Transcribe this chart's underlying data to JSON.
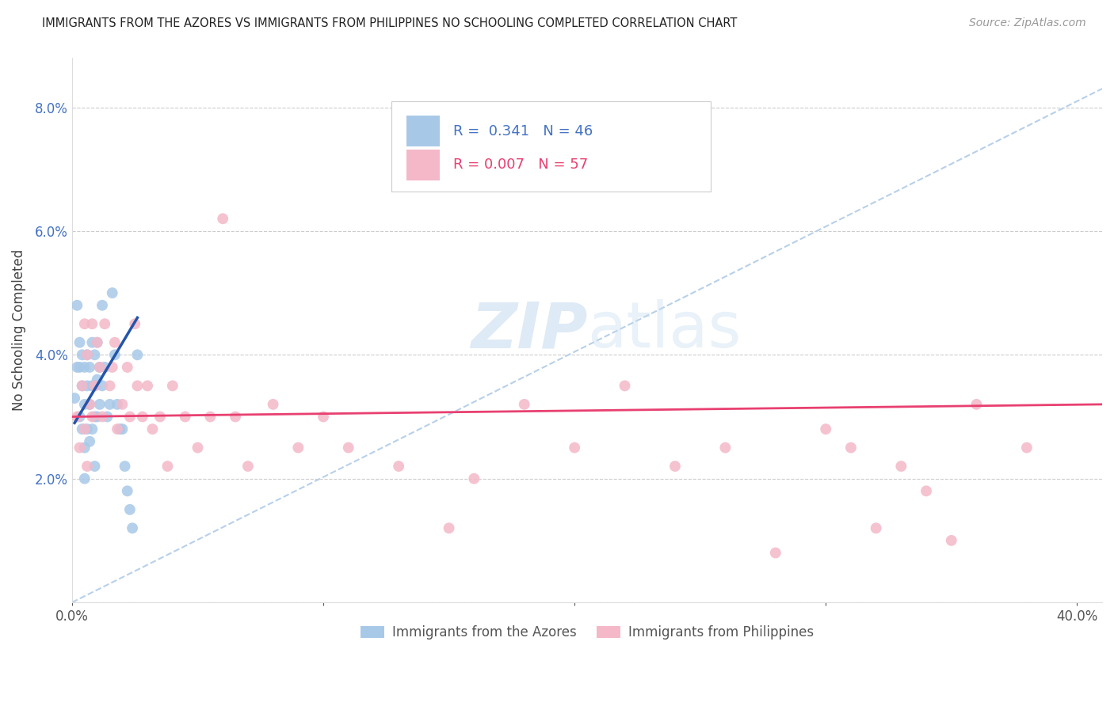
{
  "title": "IMMIGRANTS FROM THE AZORES VS IMMIGRANTS FROM PHILIPPINES NO SCHOOLING COMPLETED CORRELATION CHART",
  "source": "Source: ZipAtlas.com",
  "ylabel": "No Schooling Completed",
  "y_ticks": [
    0.0,
    0.02,
    0.04,
    0.06,
    0.08
  ],
  "y_tick_labels": [
    "",
    "2.0%",
    "4.0%",
    "6.0%",
    "8.0%"
  ],
  "x_ticks": [
    0.0,
    0.1,
    0.2,
    0.3,
    0.4
  ],
  "x_tick_labels": [
    "0.0%",
    "",
    "",
    "",
    "40.0%"
  ],
  "ylim": [
    0.0,
    0.088
  ],
  "xlim": [
    0.0,
    0.41
  ],
  "azores_color": "#a8c8e8",
  "philippines_color": "#f4b8c8",
  "azores_line_color": "#2255aa",
  "philippines_line_color": "#e84070",
  "diag_color": "#b8d0e8",
  "watermark_color": "#c8ddf0",
  "azores_x": [
    0.001,
    0.002,
    0.002,
    0.003,
    0.003,
    0.003,
    0.004,
    0.004,
    0.004,
    0.005,
    0.005,
    0.005,
    0.005,
    0.006,
    0.006,
    0.006,
    0.007,
    0.007,
    0.007,
    0.008,
    0.008,
    0.008,
    0.009,
    0.009,
    0.009,
    0.009,
    0.01,
    0.01,
    0.01,
    0.011,
    0.011,
    0.012,
    0.012,
    0.013,
    0.014,
    0.015,
    0.016,
    0.017,
    0.018,
    0.019,
    0.02,
    0.021,
    0.022,
    0.023,
    0.024,
    0.026
  ],
  "azores_y": [
    0.033,
    0.048,
    0.038,
    0.042,
    0.038,
    0.03,
    0.04,
    0.035,
    0.028,
    0.038,
    0.032,
    0.025,
    0.02,
    0.04,
    0.035,
    0.028,
    0.038,
    0.032,
    0.026,
    0.042,
    0.035,
    0.028,
    0.04,
    0.035,
    0.03,
    0.022,
    0.042,
    0.036,
    0.03,
    0.038,
    0.032,
    0.048,
    0.035,
    0.038,
    0.03,
    0.032,
    0.05,
    0.04,
    0.032,
    0.028,
    0.028,
    0.022,
    0.018,
    0.015,
    0.012,
    0.04
  ],
  "philippines_x": [
    0.002,
    0.003,
    0.004,
    0.005,
    0.005,
    0.006,
    0.006,
    0.007,
    0.008,
    0.008,
    0.009,
    0.01,
    0.011,
    0.012,
    0.013,
    0.015,
    0.016,
    0.017,
    0.018,
    0.02,
    0.022,
    0.023,
    0.025,
    0.026,
    0.028,
    0.03,
    0.032,
    0.035,
    0.038,
    0.04,
    0.045,
    0.05,
    0.055,
    0.06,
    0.065,
    0.07,
    0.08,
    0.09,
    0.1,
    0.11,
    0.13,
    0.15,
    0.16,
    0.18,
    0.2,
    0.22,
    0.24,
    0.26,
    0.28,
    0.3,
    0.31,
    0.32,
    0.33,
    0.34,
    0.35,
    0.36,
    0.38
  ],
  "philippines_y": [
    0.03,
    0.025,
    0.035,
    0.028,
    0.045,
    0.04,
    0.022,
    0.032,
    0.045,
    0.03,
    0.035,
    0.042,
    0.038,
    0.03,
    0.045,
    0.035,
    0.038,
    0.042,
    0.028,
    0.032,
    0.038,
    0.03,
    0.045,
    0.035,
    0.03,
    0.035,
    0.028,
    0.03,
    0.022,
    0.035,
    0.03,
    0.025,
    0.03,
    0.062,
    0.03,
    0.022,
    0.032,
    0.025,
    0.03,
    0.025,
    0.022,
    0.012,
    0.02,
    0.032,
    0.025,
    0.035,
    0.022,
    0.025,
    0.008,
    0.028,
    0.025,
    0.012,
    0.022,
    0.018,
    0.01,
    0.032,
    0.025
  ],
  "azores_line_x": [
    0.001,
    0.026
  ],
  "azores_line_y": [
    0.029,
    0.046
  ],
  "philippines_line_x": [
    0.0,
    0.41
  ],
  "philippines_line_y": [
    0.03,
    0.032
  ],
  "diag_line_x": [
    0.0,
    0.41
  ],
  "diag_line_y": [
    0.0,
    0.083
  ]
}
